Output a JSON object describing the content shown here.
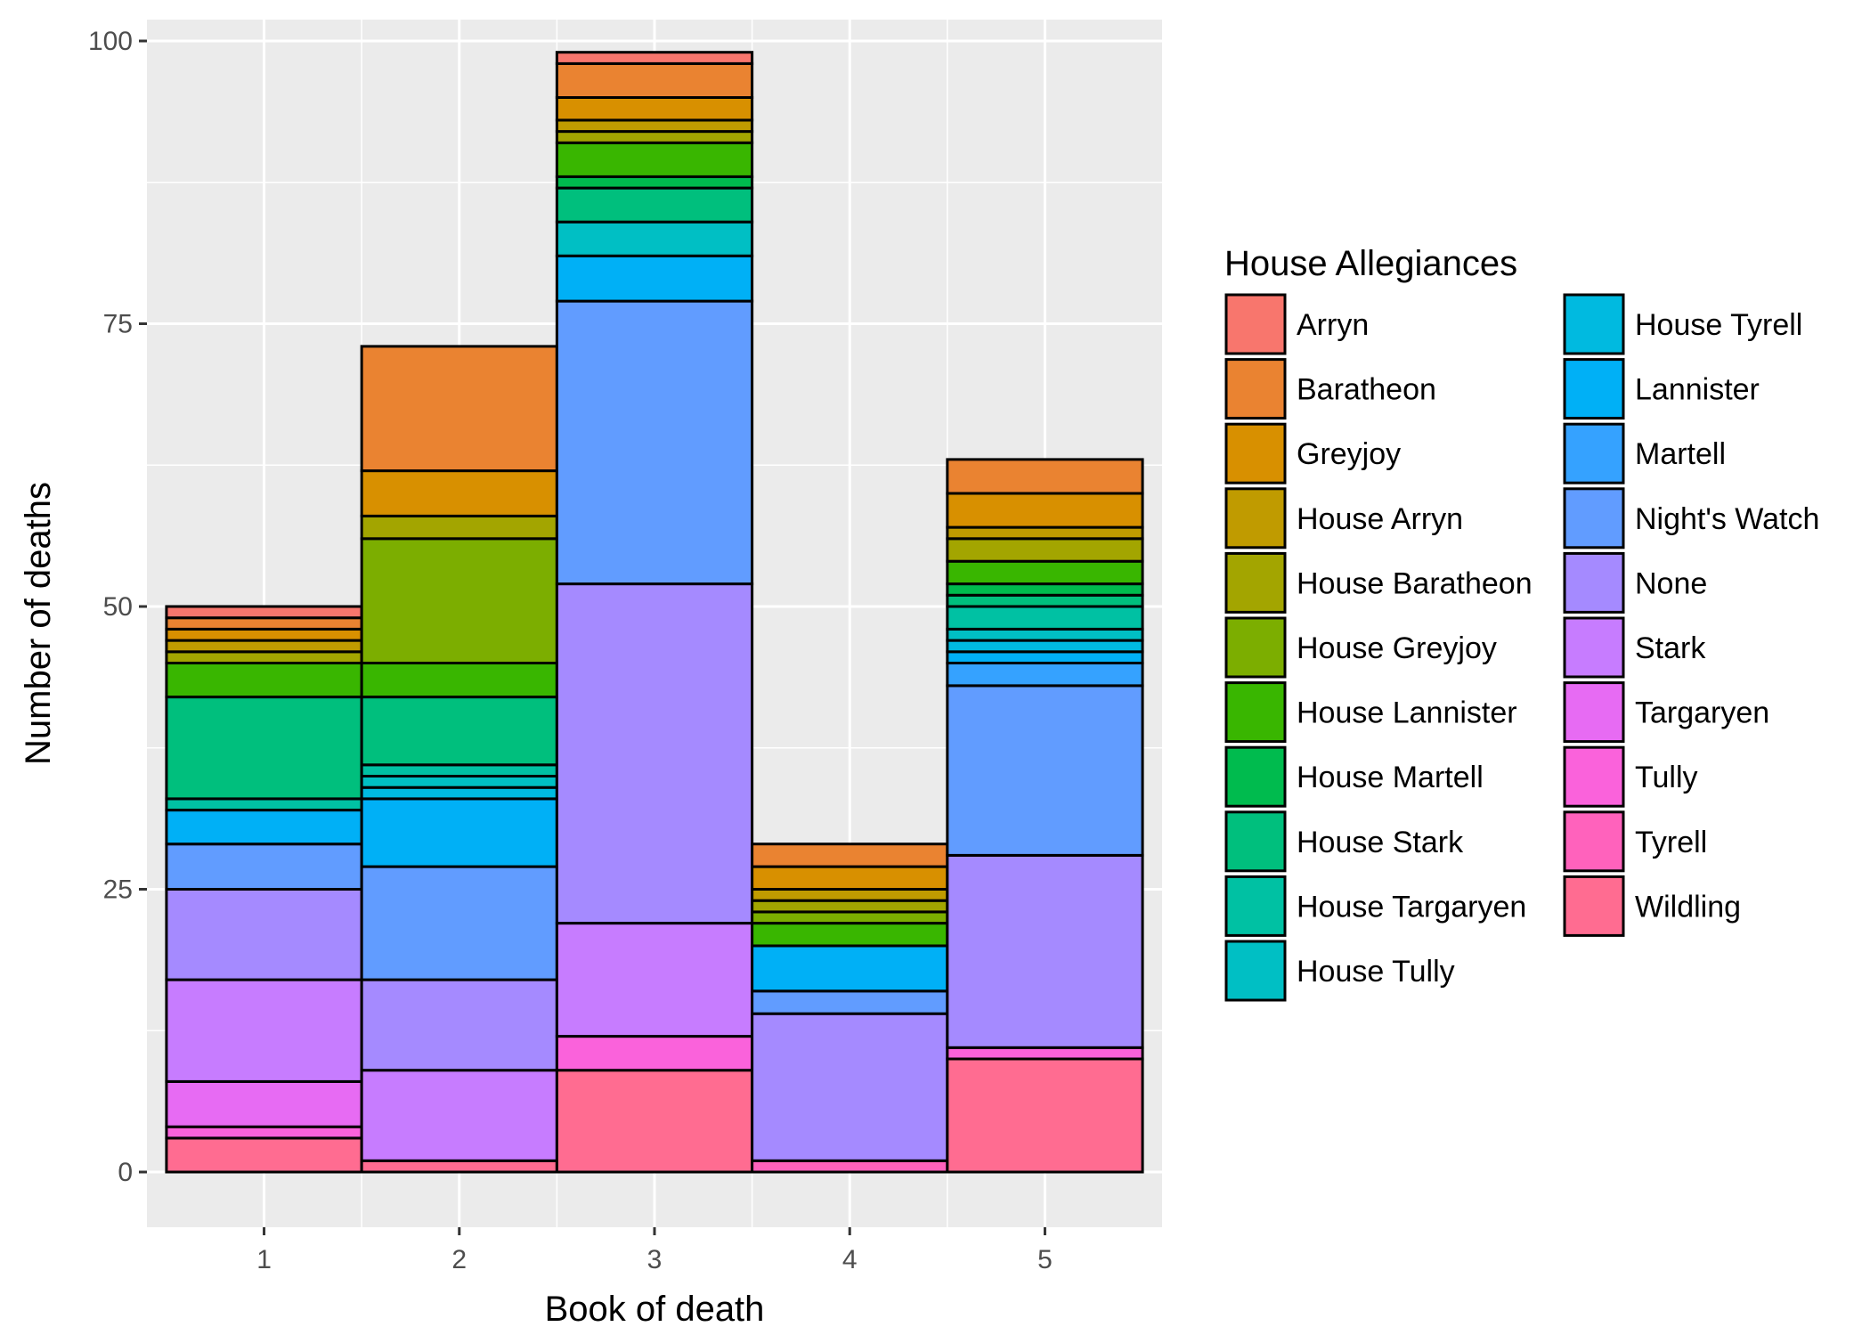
{
  "chart_data": {
    "type": "bar",
    "stacked": true,
    "xlabel": "Book of death",
    "ylabel": "Number of deaths",
    "categories": [
      "1",
      "2",
      "3",
      "4",
      "5"
    ],
    "ylim": [
      -4,
      102
    ],
    "yticks": [
      0,
      25,
      50,
      75,
      100
    ],
    "grid": true,
    "legend": {
      "title": "House Allegiances",
      "position": "right",
      "columns": 2
    },
    "series": [
      {
        "name": "Arryn",
        "color": "#F8766D",
        "values": [
          1,
          0,
          1,
          0,
          0
        ]
      },
      {
        "name": "Baratheon",
        "color": "#EA8331",
        "values": [
          1,
          11,
          3,
          2,
          3
        ]
      },
      {
        "name": "Greyjoy",
        "color": "#D89000",
        "values": [
          1,
          4,
          2,
          2,
          3
        ]
      },
      {
        "name": "House Arryn",
        "color": "#C09B00",
        "values": [
          1,
          0,
          1,
          1,
          1
        ]
      },
      {
        "name": "House Baratheon",
        "color": "#A3A500",
        "values": [
          1,
          2,
          1,
          1,
          2
        ]
      },
      {
        "name": "House Greyjoy",
        "color": "#7CAE00",
        "values": [
          0,
          11,
          0,
          1,
          0
        ]
      },
      {
        "name": "House Lannister",
        "color": "#39B600",
        "values": [
          3,
          3,
          3,
          2,
          2
        ]
      },
      {
        "name": "House Martell",
        "color": "#00BB4E",
        "values": [
          0,
          0,
          1,
          0,
          1
        ]
      },
      {
        "name": "House Stark",
        "color": "#00BF7D",
        "values": [
          9,
          6,
          3,
          0,
          1
        ]
      },
      {
        "name": "House Targaryen",
        "color": "#00C1A3",
        "values": [
          1,
          1,
          0,
          0,
          2
        ]
      },
      {
        "name": "House Tully",
        "color": "#00BFC4",
        "values": [
          0,
          1,
          3,
          0,
          1
        ]
      },
      {
        "name": "House Tyrell",
        "color": "#00BAE0",
        "values": [
          0,
          1,
          0,
          0,
          1
        ]
      },
      {
        "name": "Lannister",
        "color": "#00B0F6",
        "values": [
          3,
          6,
          4,
          4,
          1
        ]
      },
      {
        "name": "Martell",
        "color": "#35A2FF",
        "values": [
          0,
          0,
          0,
          0,
          2
        ]
      },
      {
        "name": "Night's Watch",
        "color": "#619CFF",
        "values": [
          4,
          10,
          25,
          2,
          15
        ]
      },
      {
        "name": "None",
        "color": "#A58AFF",
        "values": [
          8,
          8,
          30,
          13,
          17
        ]
      },
      {
        "name": "Stark",
        "color": "#C77CFF",
        "values": [
          9,
          8,
          10,
          0,
          0
        ]
      },
      {
        "name": "Targaryen",
        "color": "#E76BF3",
        "values": [
          4,
          0,
          0,
          0,
          0
        ]
      },
      {
        "name": "Tully",
        "color": "#FA62DB",
        "values": [
          1,
          0,
          3,
          0,
          1
        ]
      },
      {
        "name": "Tyrell",
        "color": "#FF62BC",
        "values": [
          0,
          0,
          0,
          1,
          0
        ]
      },
      {
        "name": "Wildling",
        "color": "#FF6C91",
        "values": [
          3,
          1,
          9,
          0,
          10
        ]
      }
    ]
  }
}
